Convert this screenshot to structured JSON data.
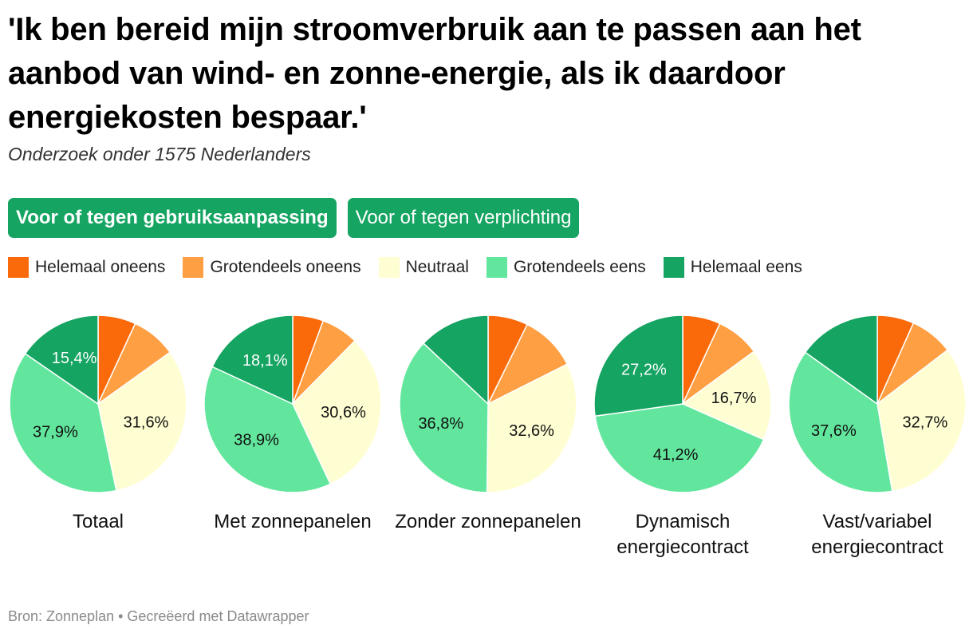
{
  "title": "'Ik ben bereid mijn stroomverbruik aan te passen aan het aanbod van wind- en zonne-energie, als ik daardoor energiekosten bespaar.'",
  "subtitle": "Onderzoek onder 1575 Nederlanders",
  "tabs": [
    {
      "label": "Voor of tegen gebruiksaanpassing",
      "active": true
    },
    {
      "label": "Voor of tegen verplichting",
      "active": false
    }
  ],
  "footer": "Bron: Zonneplan • Gecreëerd met Datawrapper",
  "chart_data": {
    "type": "pie",
    "legend_position": "top",
    "categories": [
      "Helemaal oneens",
      "Grotendeels oneens",
      "Neutraal",
      "Grotendeels eens",
      "Helemaal eens"
    ],
    "colors": [
      "#fa6a0a",
      "#ff9f43",
      "#fffed3",
      "#62e69d",
      "#15a462"
    ],
    "pies": [
      {
        "label": "Totaal",
        "values": [
          6.9,
          8.2,
          31.6,
          37.9,
          15.4
        ],
        "labels": [
          "",
          "",
          "31,6%",
          "37,9%",
          "15,4%"
        ]
      },
      {
        "label": "Met zonnepanelen",
        "values": [
          5.6,
          6.8,
          30.6,
          38.9,
          18.1
        ],
        "labels": [
          "",
          "",
          "30,6%",
          "38,9%",
          "18,1%"
        ]
      },
      {
        "label": "Zonder zonnepanelen",
        "values": [
          7.3,
          10.3,
          32.6,
          36.8,
          13.0
        ],
        "labels": [
          "",
          "",
          "32,6%",
          "36,8%",
          ""
        ]
      },
      {
        "label": "Dynamisch energiecontract",
        "values": [
          6.9,
          8.0,
          16.7,
          41.2,
          27.2
        ],
        "labels": [
          "",
          "",
          "16,7%",
          "41,2%",
          "27,2%"
        ]
      },
      {
        "label": "Vast/variabel energiecontract",
        "values": [
          6.7,
          7.9,
          32.7,
          37.6,
          15.1
        ],
        "labels": [
          "",
          "",
          "32,7%",
          "37,6%",
          ""
        ]
      }
    ]
  }
}
